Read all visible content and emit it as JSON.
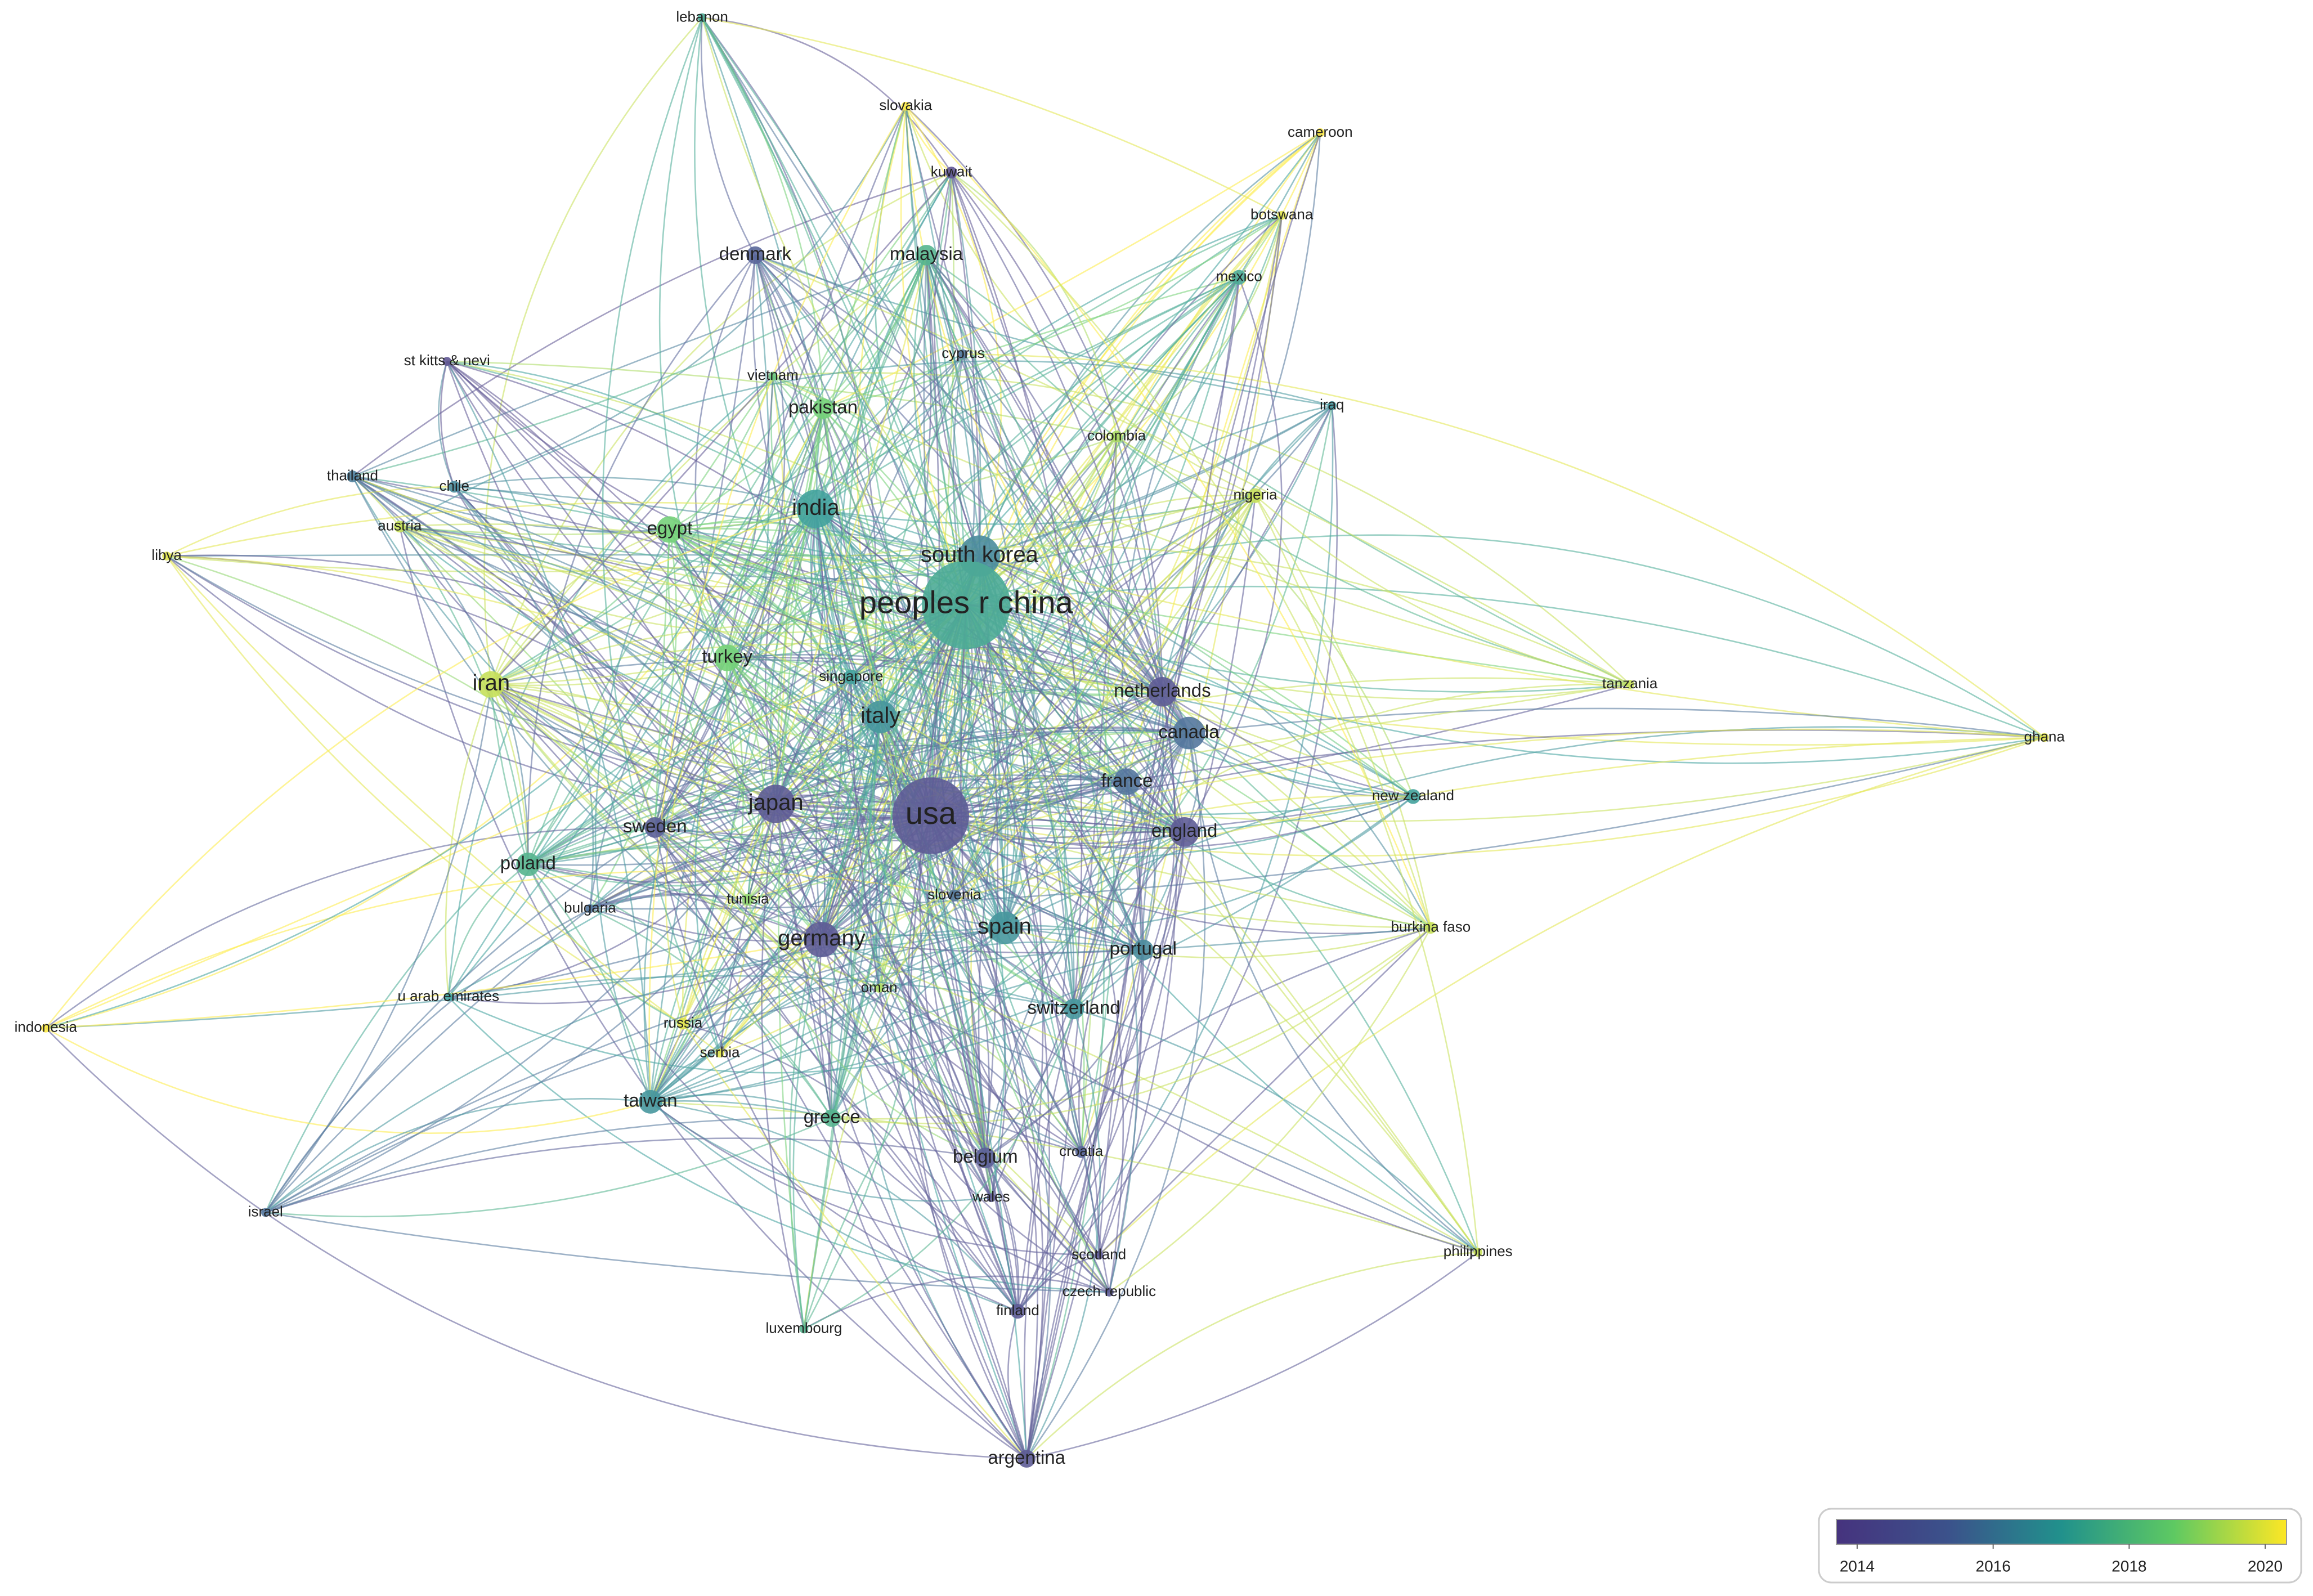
{
  "nodes": [
    {
      "label": "lebanon"
    },
    {
      "label": "slovakia"
    },
    {
      "label": "kuwait"
    },
    {
      "label": "cameroon"
    },
    {
      "label": "botswana"
    },
    {
      "label": "denmark"
    },
    {
      "label": "malaysia"
    },
    {
      "label": "mexico"
    },
    {
      "label": "st kitts & nevi"
    },
    {
      "label": "cyprus"
    },
    {
      "label": "vietnam"
    },
    {
      "label": "pakistan"
    },
    {
      "label": "iraq"
    },
    {
      "label": "colombia"
    },
    {
      "label": "thailand"
    },
    {
      "label": "chile"
    },
    {
      "label": "nigeria"
    },
    {
      "label": "india"
    },
    {
      "label": "egypt"
    },
    {
      "label": "austria"
    },
    {
      "label": "libya"
    },
    {
      "label": "south korea"
    },
    {
      "label": "peoples r china"
    },
    {
      "label": "turkey"
    },
    {
      "label": "singapore"
    },
    {
      "label": "iran"
    },
    {
      "label": "tanzania"
    },
    {
      "label": "netherlands"
    },
    {
      "label": "italy"
    },
    {
      "label": "canada"
    },
    {
      "label": "ghana"
    },
    {
      "label": "france"
    },
    {
      "label": "new zealand"
    },
    {
      "label": "japan"
    },
    {
      "label": "usa"
    },
    {
      "label": "sweden"
    },
    {
      "label": "england"
    },
    {
      "label": "poland"
    },
    {
      "label": "bulgaria"
    },
    {
      "label": "tunisia"
    },
    {
      "label": "slovenia"
    },
    {
      "label": "burkina faso"
    },
    {
      "label": "spain"
    },
    {
      "label": "germany"
    },
    {
      "label": "portugal"
    },
    {
      "label": "oman"
    },
    {
      "label": "u arab emirates"
    },
    {
      "label": "indonesia"
    },
    {
      "label": "switzerland"
    },
    {
      "label": "russia"
    },
    {
      "label": "serbia"
    },
    {
      "label": "taiwan"
    },
    {
      "label": "greece"
    },
    {
      "label": "croatia"
    },
    {
      "label": "belgium"
    },
    {
      "label": "wales"
    },
    {
      "label": "israel"
    },
    {
      "label": "philippines"
    },
    {
      "label": "scotland"
    },
    {
      "label": "czech republic"
    },
    {
      "label": "finland"
    },
    {
      "label": "luxembourg"
    },
    {
      "label": "argentina"
    }
  ],
  "legend": {
    "ticks": [
      2014,
      2016,
      2018,
      2020
    ]
  }
}
